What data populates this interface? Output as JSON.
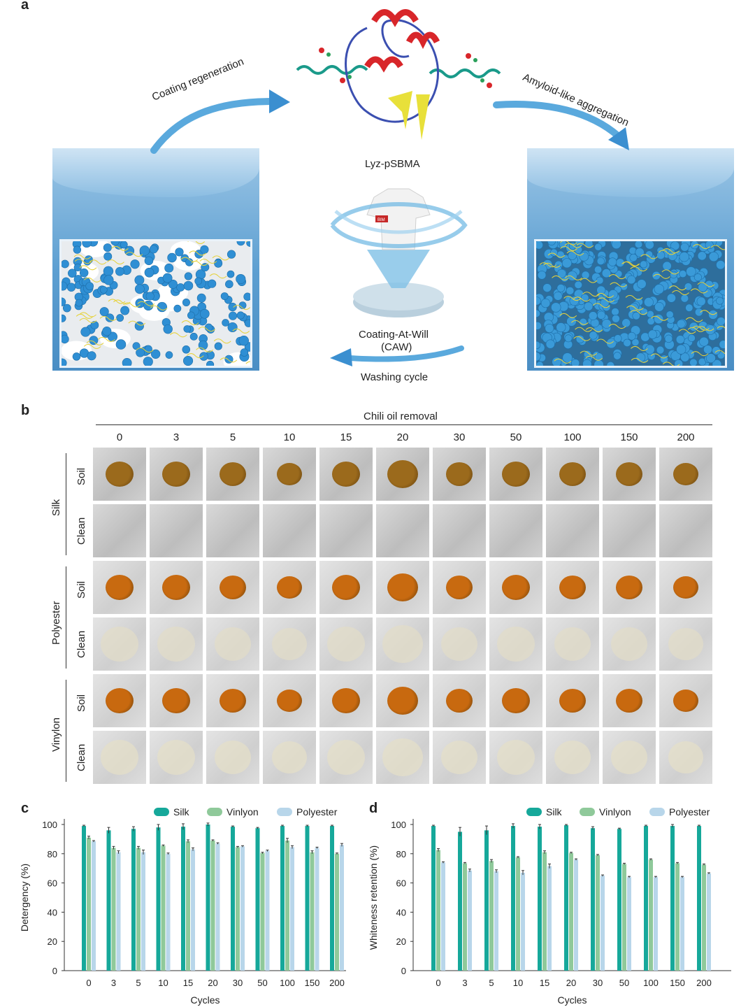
{
  "panel_a": {
    "letter": "a",
    "molecule_label": "Lyz-pSBMA",
    "arrow_left_label": "Coating regeneration",
    "arrow_right_label": "Amyloid-like aggregation",
    "caw_label_line1": "Coating-At-Will",
    "caw_label_line2": "(CAW)",
    "washing_label": "Washing cycle",
    "shirt_badge": "BIM"
  },
  "panel_b": {
    "letter": "b",
    "title": "Chili oil removal",
    "cycles": [
      "0",
      "3",
      "5",
      "10",
      "15",
      "20",
      "30",
      "50",
      "100",
      "150",
      "200"
    ],
    "fabrics": [
      {
        "name": "Silk",
        "rows": [
          "Soil",
          "Clean"
        ],
        "stain_color": "#9b6a1c",
        "clean_color": "#cfcfcf"
      },
      {
        "name": "Polyester",
        "rows": [
          "Soil",
          "Clean"
        ],
        "stain_color": "#c86a10",
        "clean_color": "#e2ddc8"
      },
      {
        "name": "Vinylon",
        "rows": [
          "Soil",
          "Clean"
        ],
        "stain_color": "#c8690f",
        "clean_color": "#e6e0c8"
      }
    ]
  },
  "chart_c": {
    "letter": "c",
    "legend": [
      "Silk",
      "Vinlyon",
      "Polyester"
    ],
    "colors": {
      "Silk": "#16a89a",
      "Vinlyon": "#8fc99a",
      "Polyester": "#b8d6ea"
    },
    "ylabel": "Detergency (%)",
    "xlabel": "Cycles",
    "yticks": [
      "0",
      "20",
      "40",
      "60",
      "80",
      "100"
    ]
  },
  "chart_d": {
    "letter": "d",
    "legend": [
      "Silk",
      "Vinlyon",
      "Polyester"
    ],
    "ylabel": "Whiteness retention (%)",
    "xlabel": "Cycles",
    "yticks": [
      "0",
      "20",
      "40",
      "60",
      "80",
      "100"
    ]
  },
  "chart_data": [
    {
      "type": "bar",
      "categories": [
        "0",
        "3",
        "5",
        "10",
        "15",
        "20",
        "30",
        "50",
        "100",
        "150",
        "200"
      ],
      "ylim": [
        0,
        100
      ],
      "xlabel": "Cycles",
      "ylabel": "Detergency (%)",
      "legend_position": "top",
      "series": [
        {
          "name": "Silk",
          "values": [
            99,
            96,
            97,
            98,
            98.5,
            100,
            98.5,
            97.5,
            99,
            99,
            99
          ],
          "errors": [
            0.5,
            2,
            1.5,
            2,
            2,
            1,
            0.5,
            0.5,
            0.5,
            0.5,
            0.5
          ]
        },
        {
          "name": "Vinlyon",
          "values": [
            91,
            84,
            84,
            85.5,
            88.5,
            89,
            84.5,
            80.5,
            89,
            81,
            80
          ],
          "errors": [
            1,
            1,
            1,
            0.5,
            1,
            0.5,
            0.5,
            0.5,
            1.5,
            1,
            0.5
          ]
        },
        {
          "name": "Polyester",
          "values": [
            88.5,
            81,
            81,
            80,
            83,
            87,
            85,
            82,
            84.5,
            84,
            86
          ],
          "errors": [
            0.5,
            1,
            1.5,
            0.5,
            1,
            0.5,
            0.5,
            0.5,
            1,
            0.5,
            1
          ]
        }
      ]
    },
    {
      "type": "bar",
      "categories": [
        "0",
        "3",
        "5",
        "10",
        "15",
        "20",
        "30",
        "50",
        "100",
        "150",
        "200"
      ],
      "ylim": [
        0,
        100
      ],
      "xlabel": "Cycles",
      "ylabel": "Whiteness retention (%)",
      "legend_position": "top",
      "series": [
        {
          "name": "Silk",
          "values": [
            99,
            95,
            96,
            99,
            98.5,
            99.5,
            97.5,
            97,
            99,
            99,
            99
          ],
          "errors": [
            0.5,
            3,
            3,
            1.5,
            1.5,
            0.5,
            1,
            0.5,
            0.5,
            1,
            0.5
          ]
        },
        {
          "name": "Vinlyon",
          "values": [
            82.5,
            73.5,
            75,
            77.5,
            81,
            80.5,
            79,
            73,
            76,
            73.5,
            72.5
          ],
          "errors": [
            1,
            0.5,
            1,
            0.5,
            1,
            0.5,
            0.5,
            0.5,
            0.5,
            0.5,
            0.5
          ]
        },
        {
          "name": "Polyester",
          "values": [
            74,
            68.5,
            68,
            67,
            71.5,
            76,
            65,
            64,
            64,
            64,
            66.5
          ],
          "errors": [
            0.5,
            1,
            1,
            1.5,
            1.5,
            0.5,
            0.5,
            0.5,
            0.5,
            0.5,
            0.5
          ]
        }
      ]
    }
  ]
}
